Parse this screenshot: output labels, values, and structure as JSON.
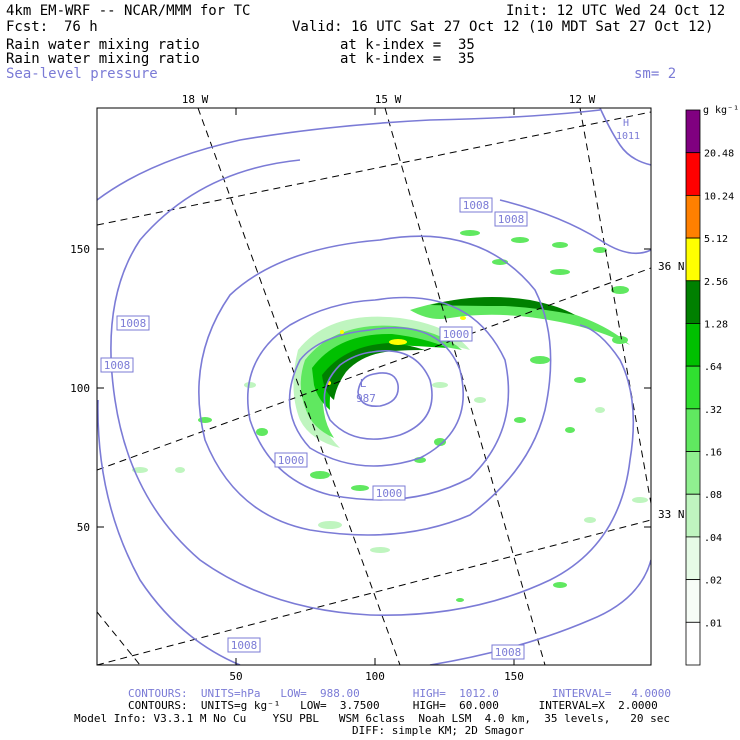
{
  "header": {
    "model": "4km EM-WRF -- NCAR/MMM for TC",
    "init": "Init: 12 UTC Wed 24 Oct 12",
    "fcst_label": "Fcst:",
    "fcst_value": "76 h",
    "valid": "Valid: 16 UTC Sat 27 Oct 12 (10 MDT Sat 27 Oct 12)",
    "fields": [
      {
        "name": "Rain water mixing ratio",
        "level": "at k-index =  35"
      },
      {
        "name": "Rain water mixing ratio",
        "level": "at k-index =  35"
      }
    ],
    "overlay": "Sea-level pressure",
    "smoothing": "sm= 2"
  },
  "map": {
    "x_ticks": [
      "50",
      "100",
      "150"
    ],
    "y_ticks": [
      "50",
      "100",
      "150"
    ],
    "lon_labels": [
      "18 W",
      "15 W",
      "12 W"
    ],
    "lat_labels": [
      "36 N",
      "33 N"
    ],
    "high_marker": {
      "symbol": "H",
      "value": "1011"
    },
    "low_marker": {
      "symbol": "L",
      "value": "987"
    },
    "isobar_labels": [
      "1008",
      "1008",
      "1008",
      "1008",
      "1008",
      "1008",
      "1000",
      "1000",
      "1000"
    ]
  },
  "colorbar": {
    "unit": "g kg⁻¹",
    "levels": [
      "20.48",
      "10.24",
      "5.12",
      "2.56",
      "1.28",
      ".64",
      ".32",
      ".16",
      ".08",
      ".04",
      ".02",
      ".01"
    ],
    "colors": [
      "#800080",
      "#ff0000",
      "#ff8000",
      "#ffff00",
      "#008000",
      "#00c000",
      "#30e030",
      "#60e860",
      "#90f090",
      "#bff5bf",
      "#e6fbe6",
      "#f7fdf7",
      "#ffffff"
    ]
  },
  "footer": {
    "contours_slp": "CONTOURS:  UNITS=hPa   LOW=  988.00        HIGH=  1012.0        INTERVAL=   4.0000",
    "contours_rain": "CONTOURS:  UNITS=g kg⁻¹   LOW=  3.7500     HIGH=  60.000      INTERVAL=X  2.0000",
    "model_info": "Model Info: V3.3.1 M No Cu    YSU PBL   WSM 6class  Noah LSM  4.0 km,  35 levels,   20 sec",
    "diff": "DIFF: simple KM; 2D Smagor"
  },
  "colors": {
    "isobar": "#7b7bd6",
    "grid": "#000000"
  }
}
